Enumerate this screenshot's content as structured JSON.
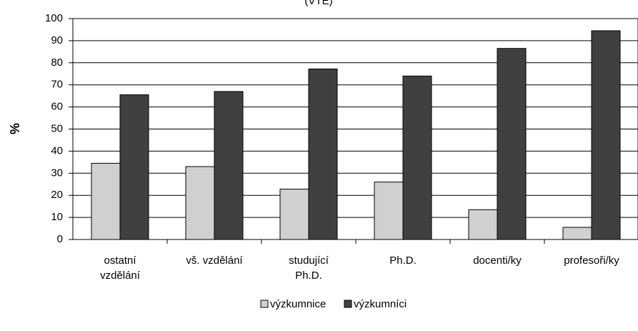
{
  "chart_data": {
    "type": "bar",
    "title": "(VTE)",
    "ylabel": "%",
    "categories": [
      [
        "ostatní",
        "vzdělání"
      ],
      [
        "vš. vzdělání"
      ],
      [
        "studující",
        "Ph.D."
      ],
      [
        "Ph.D."
      ],
      [
        "docenti/ky"
      ],
      [
        "profesoři/ky"
      ]
    ],
    "series": [
      {
        "name": "výzkumnice",
        "color": "#d0d0d0",
        "values": [
          34.5,
          33,
          22.8,
          26,
          13.5,
          5.5
        ]
      },
      {
        "name": "výzkumníci",
        "color": "#404040",
        "values": [
          65.5,
          67,
          77.2,
          74,
          86.5,
          94.5
        ]
      }
    ],
    "ylim": [
      0,
      100
    ],
    "yticks": [
      0,
      10,
      20,
      30,
      40,
      50,
      60,
      70,
      80,
      90,
      100
    ],
    "grid": true
  }
}
